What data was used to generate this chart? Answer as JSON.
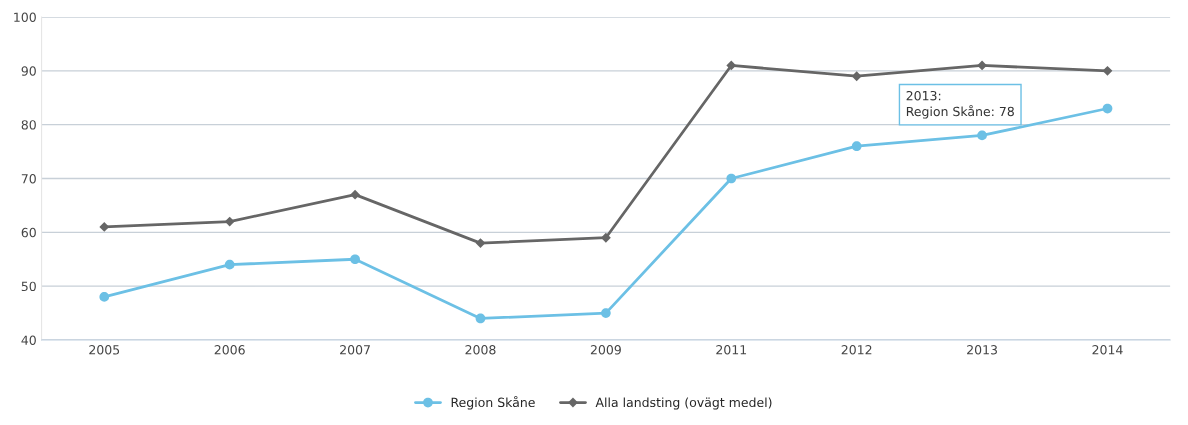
{
  "chart_data": {
    "type": "line",
    "categories": [
      "2005",
      "2006",
      "2007",
      "2008",
      "2009",
      "2011",
      "2012",
      "2013",
      "2014"
    ],
    "series": [
      {
        "name": "Region Skåne",
        "color": "#6cc0e5",
        "marker": "circle",
        "values": [
          48,
          54,
          55,
          44,
          45,
          70,
          76,
          78,
          83
        ]
      },
      {
        "name": "Alla landsting (ovägt medel)",
        "color": "#666666",
        "marker": "diamond",
        "values": [
          61,
          62,
          67,
          58,
          59,
          91,
          89,
          91,
          90
        ]
      }
    ],
    "ylim": [
      40,
      100
    ],
    "yticks": [
      40,
      50,
      60,
      70,
      80,
      90,
      100
    ],
    "grid": "y",
    "legend": "bottom",
    "line_style": "solid",
    "annotations": [
      {
        "text": "2013:\nRegion Skåne: 78",
        "x": "2013",
        "y": 78
      }
    ]
  }
}
